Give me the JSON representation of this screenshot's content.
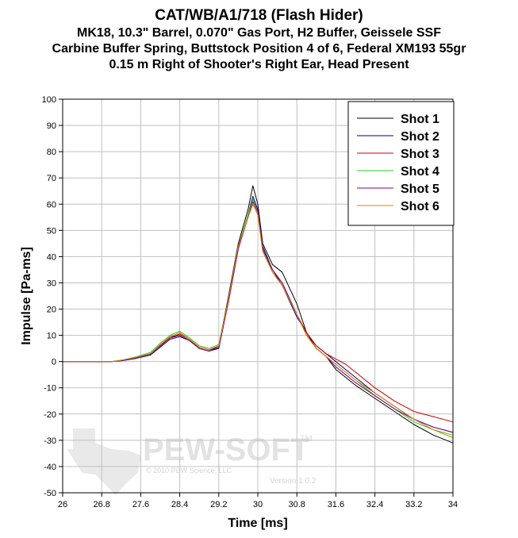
{
  "chart_data": {
    "type": "line",
    "title": "CAT/WB/A1/718 (Flash Hider)",
    "subtitle_lines": [
      "MK18, 10.3\" Barrel, 0.070\" Gas Port, H2 Buffer, Geissele SSF",
      "Carbine Buffer Spring, Buttstock Position 4 of 6, Federal XM193 55gr",
      "0.15 m Right of Shooter's Right Ear, Head Present"
    ],
    "xlabel": "Time [ms]",
    "ylabel": "Impulse [Pa-ms]",
    "xlim": [
      26,
      34
    ],
    "ylim": [
      -50,
      100
    ],
    "xticks": [
      26,
      26.8,
      27.6,
      28.4,
      29.2,
      30,
      30.8,
      31.6,
      32.4,
      33.2,
      34
    ],
    "xtick_labels": [
      "26",
      "26.8",
      "27.6",
      "28.4",
      "29.2",
      "30",
      "30.8",
      "31.6",
      "32.4",
      "33.2",
      "34"
    ],
    "yticks": [
      -50,
      -40,
      -30,
      -20,
      -10,
      0,
      10,
      20,
      30,
      40,
      50,
      60,
      70,
      80,
      90,
      100
    ],
    "ytick_labels": [
      "-50",
      "-40",
      "-30",
      "-20",
      "-10",
      "0",
      "10",
      "20",
      "30",
      "40",
      "50",
      "60",
      "70",
      "80",
      "90",
      "100"
    ],
    "grid": true,
    "legend_position": "top-right",
    "series": [
      {
        "name": "Shot 1",
        "color": "#000000",
        "x": [
          26,
          27.0,
          27.2,
          27.5,
          27.8,
          28.0,
          28.2,
          28.4,
          28.6,
          28.8,
          29.0,
          29.2,
          29.4,
          29.6,
          29.8,
          29.9,
          30.0,
          30.1,
          30.3,
          30.5,
          30.8,
          31.0,
          31.2,
          31.4,
          31.6,
          31.8,
          32.0,
          32.4,
          32.8,
          33.2,
          33.6,
          34.0
        ],
        "y": [
          0,
          0,
          0.5,
          1.5,
          3,
          6,
          9,
          10,
          8,
          5,
          4,
          6,
          25,
          45,
          58,
          67,
          60,
          45,
          37,
          34,
          22,
          11,
          5,
          2,
          -3,
          -6,
          -9,
          -14,
          -19,
          -24,
          -28,
          -31
        ]
      },
      {
        "name": "Shot 2",
        "color": "#00008b",
        "x": [
          26,
          27.0,
          27.2,
          27.5,
          27.8,
          28.0,
          28.2,
          28.4,
          28.6,
          28.8,
          29.0,
          29.2,
          29.4,
          29.6,
          29.8,
          29.9,
          30.0,
          30.1,
          30.3,
          30.5,
          30.8,
          31.0,
          31.2,
          31.4,
          31.6,
          31.8,
          32.0,
          32.4,
          32.8,
          33.2,
          33.6,
          34.0
        ],
        "y": [
          0,
          0,
          0.3,
          1.2,
          2.5,
          5.5,
          8.5,
          9.5,
          8,
          5,
          4,
          5,
          23,
          43,
          56,
          63,
          58,
          44,
          35,
          29,
          17,
          11,
          6,
          3,
          0,
          -3,
          -6,
          -12,
          -17,
          -22,
          -25,
          -27
        ]
      },
      {
        "name": "Shot 3",
        "color": "#cc0000",
        "x": [
          26,
          27.0,
          27.2,
          27.5,
          27.8,
          28.0,
          28.2,
          28.4,
          28.6,
          28.8,
          29.0,
          29.2,
          29.4,
          29.6,
          29.8,
          29.9,
          30.0,
          30.1,
          30.3,
          30.5,
          30.8,
          31.0,
          31.2,
          31.4,
          31.6,
          31.8,
          32.0,
          32.4,
          32.8,
          33.2,
          33.6,
          34.0
        ],
        "y": [
          0,
          0,
          0.4,
          1.5,
          3,
          6,
          9,
          10.5,
          8.5,
          5.5,
          4.5,
          6,
          24,
          44,
          55,
          60,
          56,
          42,
          35,
          30,
          18,
          11,
          6,
          3,
          1,
          -1,
          -4,
          -10,
          -15,
          -19,
          -21,
          -23
        ]
      },
      {
        "name": "Shot 4",
        "color": "#22cc22",
        "x": [
          26,
          27.0,
          27.2,
          27.5,
          27.8,
          28.0,
          28.2,
          28.4,
          28.6,
          28.8,
          29.0,
          29.2,
          29.4,
          29.6,
          29.8,
          29.9,
          30.0,
          30.1,
          30.3,
          30.5,
          30.8,
          31.0,
          31.2,
          31.4,
          31.6,
          31.8,
          32.0,
          32.4,
          32.8,
          33.2,
          33.6,
          34.0
        ],
        "y": [
          0,
          0,
          0.5,
          1.8,
          3.5,
          7,
          10,
          11.5,
          9,
          6,
          5,
          6.5,
          24,
          44,
          56,
          62,
          57,
          43,
          34,
          29,
          18,
          10,
          5,
          2,
          -1,
          -4,
          -7,
          -13,
          -18,
          -23,
          -26,
          -28
        ]
      },
      {
        "name": "Shot 5",
        "color": "#800080",
        "x": [
          26,
          27.0,
          27.2,
          27.5,
          27.8,
          28.0,
          28.2,
          28.4,
          28.6,
          28.8,
          29.0,
          29.2,
          29.4,
          29.6,
          29.8,
          29.9,
          30.0,
          30.1,
          30.3,
          30.5,
          30.8,
          31.0,
          31.2,
          31.4,
          31.6,
          31.8,
          32.0,
          32.4,
          32.8,
          33.2,
          33.6,
          34.0
        ],
        "y": [
          0,
          0,
          0.4,
          1.4,
          2.8,
          6,
          9.5,
          10,
          8,
          5,
          4,
          5.5,
          23,
          43,
          55,
          61,
          57,
          43,
          35,
          30,
          18,
          10,
          5,
          2,
          -2,
          -5,
          -8,
          -13,
          -18,
          -22,
          -25,
          -27
        ]
      },
      {
        "name": "Shot 6",
        "color": "#e08000",
        "x": [
          26,
          27.0,
          27.2,
          27.5,
          27.8,
          28.0,
          28.2,
          28.4,
          28.6,
          28.8,
          29.0,
          29.2,
          29.4,
          29.6,
          29.8,
          29.9,
          30.0,
          30.1,
          30.3,
          30.5,
          30.8,
          31.0,
          31.2,
          31.4,
          31.6,
          31.8,
          32.0,
          32.4,
          32.8,
          33.2,
          33.6,
          34.0
        ],
        "y": [
          0,
          0,
          0.5,
          1.6,
          3,
          6.5,
          9.5,
          11,
          8.5,
          5.5,
          4.5,
          6,
          24,
          44,
          55,
          60,
          56,
          42,
          34,
          29,
          18,
          10,
          5,
          2,
          -1,
          -4,
          -7,
          -12,
          -17,
          -22,
          -26,
          -29
        ]
      }
    ]
  },
  "watermark": {
    "brand": "PEW-SOFT",
    "trademark": "TM",
    "copyright": "© 2010 PEW Science, LLC",
    "version": "Version 1.0.2"
  },
  "colors": {
    "grid": "#c0c0c0",
    "axis": "#000000",
    "background": "#ffffff"
  }
}
